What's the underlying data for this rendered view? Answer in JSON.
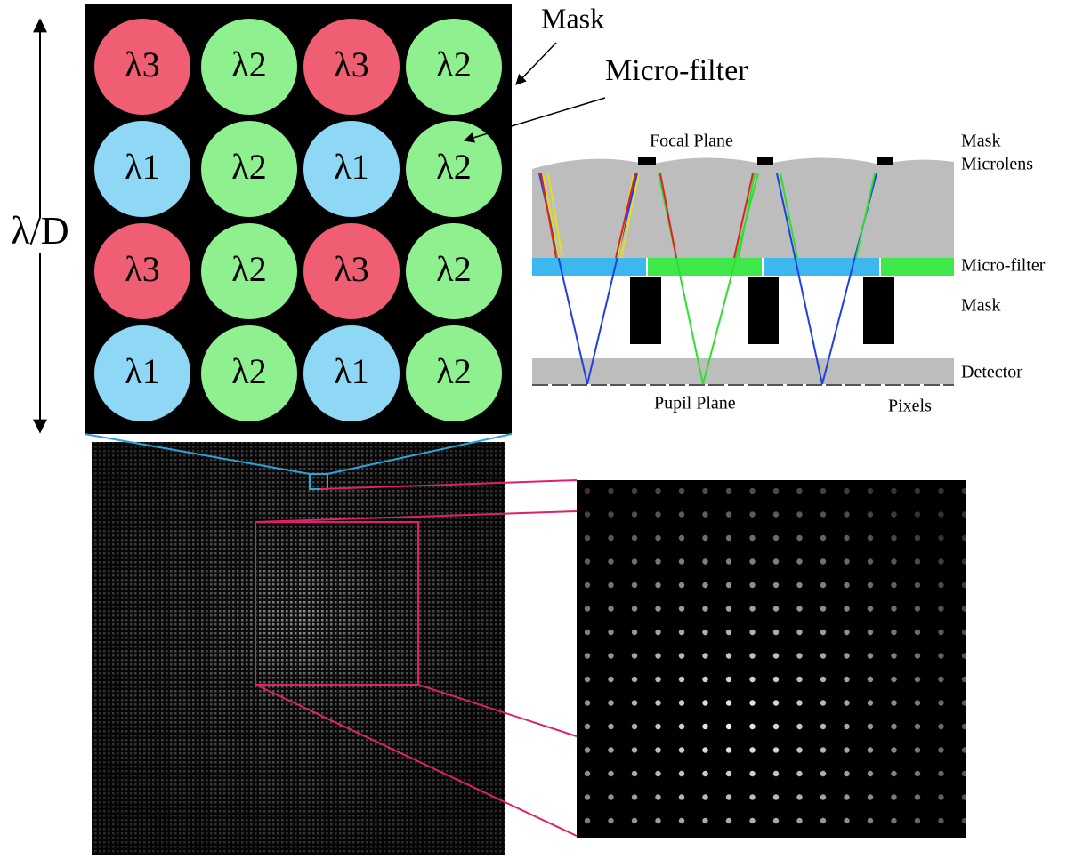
{
  "mask_grid": {
    "axis_label": "λ/D",
    "cells": [
      [
        "λ3",
        "λ2",
        "λ3",
        "λ2"
      ],
      [
        "λ1",
        "λ2",
        "λ1",
        "λ2"
      ],
      [
        "λ3",
        "λ2",
        "λ3",
        "λ2"
      ],
      [
        "λ1",
        "λ2",
        "λ1",
        "λ2"
      ]
    ]
  },
  "callouts": {
    "mask": "Mask",
    "micro_filter": "Micro-filter"
  },
  "cross_section": {
    "focal_plane": "Focal Plane",
    "pupil_plane": "Pupil Plane",
    "mask_top": "Mask",
    "microlens": "Microlens",
    "micro_filter": "Micro-filter",
    "mask": "Mask",
    "detector": "Detector",
    "pixels": "Pixels"
  }
}
